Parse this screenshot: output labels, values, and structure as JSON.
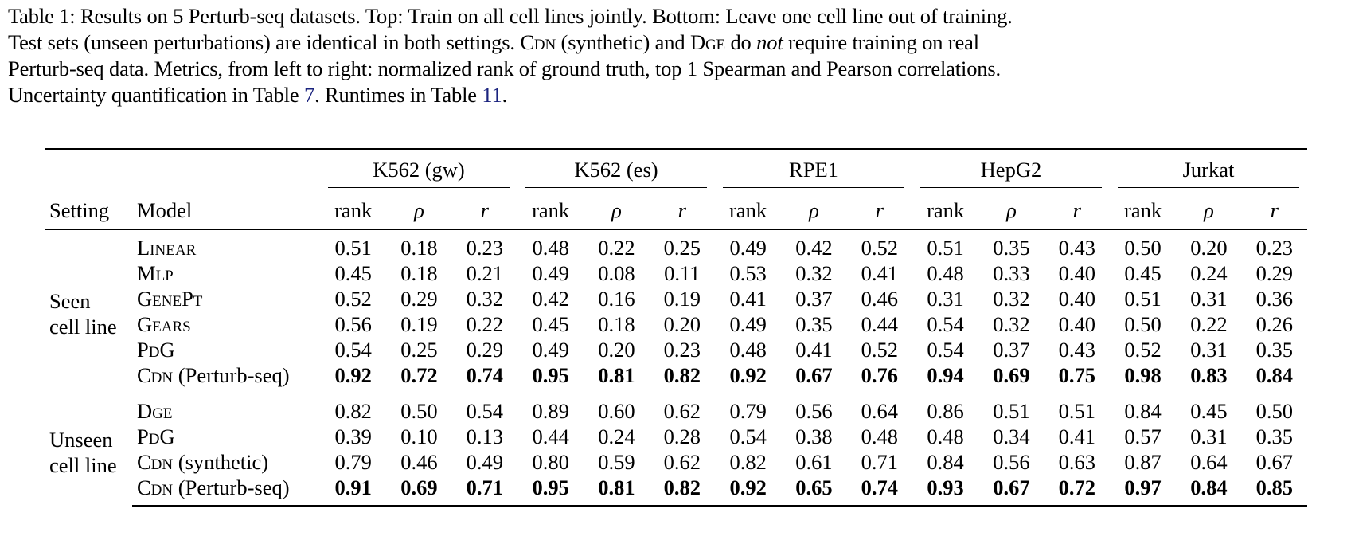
{
  "caption": {
    "line1": "Table 1: Results on 5 Perturb-seq datasets. Top: Train on all cell lines jointly. Bottom: Leave one cell line out of training.",
    "line2_a": "Test sets (unseen perturbations) are identical in both settings. ",
    "line2_cdn": "Cdn",
    "line2_b": " (synthetic) and ",
    "line2_dge": "Dge",
    "line2_c": " do ",
    "line2_not": "not",
    "line2_d": " require training on real",
    "line3": "Perturb-seq data. Metrics, from left to right: normalized rank of ground truth, top 1 Spearman and Pearson correlations.",
    "line4_a": "Uncertainty quantification in Table ",
    "line4_ref1": "7",
    "line4_b": ". Runtimes in Table ",
    "line4_ref2": "11",
    "line4_c": "."
  },
  "table": {
    "header": {
      "setting": "Setting",
      "model": "Model",
      "datasets": [
        "K562 (gw)",
        "K562 (es)",
        "RPE1",
        "HepG2",
        "Jurkat"
      ],
      "metrics": [
        "rank",
        "ρ",
        "r"
      ]
    },
    "blocks": [
      {
        "setting_line1": "Seen",
        "setting_line2": "cell line",
        "rows": [
          {
            "model_sc": "Linear",
            "model_suffix": "",
            "bold": false,
            "values": [
              "0.51",
              "0.18",
              "0.23",
              "0.48",
              "0.22",
              "0.25",
              "0.49",
              "0.42",
              "0.52",
              "0.51",
              "0.35",
              "0.43",
              "0.50",
              "0.20",
              "0.23"
            ]
          },
          {
            "model_sc": "Mlp",
            "model_suffix": "",
            "bold": false,
            "values": [
              "0.45",
              "0.18",
              "0.21",
              "0.49",
              "0.08",
              "0.11",
              "0.53",
              "0.32",
              "0.41",
              "0.48",
              "0.33",
              "0.40",
              "0.45",
              "0.24",
              "0.29"
            ]
          },
          {
            "model_sc": "GenePt",
            "model_suffix": "",
            "bold": false,
            "values": [
              "0.52",
              "0.29",
              "0.32",
              "0.42",
              "0.16",
              "0.19",
              "0.41",
              "0.37",
              "0.46",
              "0.31",
              "0.32",
              "0.40",
              "0.51",
              "0.31",
              "0.36"
            ]
          },
          {
            "model_sc": "Gears",
            "model_suffix": "",
            "bold": false,
            "values": [
              "0.56",
              "0.19",
              "0.22",
              "0.45",
              "0.18",
              "0.20",
              "0.49",
              "0.35",
              "0.44",
              "0.54",
              "0.32",
              "0.40",
              "0.50",
              "0.22",
              "0.26"
            ]
          },
          {
            "model_sc": "PdG",
            "model_suffix": "",
            "bold": false,
            "values": [
              "0.54",
              "0.25",
              "0.29",
              "0.49",
              "0.20",
              "0.23",
              "0.48",
              "0.41",
              "0.52",
              "0.54",
              "0.37",
              "0.43",
              "0.52",
              "0.31",
              "0.35"
            ]
          },
          {
            "model_sc": "Cdn",
            "model_suffix": " (Perturb-seq)",
            "bold": true,
            "values": [
              "0.92",
              "0.72",
              "0.74",
              "0.95",
              "0.81",
              "0.82",
              "0.92",
              "0.67",
              "0.76",
              "0.94",
              "0.69",
              "0.75",
              "0.98",
              "0.83",
              "0.84"
            ]
          }
        ]
      },
      {
        "setting_line1": "Unseen",
        "setting_line2": "cell line",
        "rows": [
          {
            "model_sc": "Dge",
            "model_suffix": "",
            "bold": false,
            "values": [
              "0.82",
              "0.50",
              "0.54",
              "0.89",
              "0.60",
              "0.62",
              "0.79",
              "0.56",
              "0.64",
              "0.86",
              "0.51",
              "0.51",
              "0.84",
              "0.45",
              "0.50"
            ]
          },
          {
            "model_sc": "PdG",
            "model_suffix": "",
            "bold": false,
            "values": [
              "0.39",
              "0.10",
              "0.13",
              "0.44",
              "0.24",
              "0.28",
              "0.54",
              "0.38",
              "0.48",
              "0.48",
              "0.34",
              "0.41",
              "0.57",
              "0.31",
              "0.35"
            ]
          },
          {
            "model_sc": "Cdn",
            "model_suffix": " (synthetic)",
            "bold": false,
            "values": [
              "0.79",
              "0.46",
              "0.49",
              "0.80",
              "0.59",
              "0.62",
              "0.82",
              "0.61",
              "0.71",
              "0.84",
              "0.56",
              "0.63",
              "0.87",
              "0.64",
              "0.67"
            ]
          },
          {
            "model_sc": "Cdn",
            "model_suffix": " (Perturb-seq)",
            "bold": true,
            "values": [
              "0.91",
              "0.69",
              "0.71",
              "0.95",
              "0.81",
              "0.82",
              "0.92",
              "0.65",
              "0.74",
              "0.93",
              "0.67",
              "0.72",
              "0.97",
              "0.84",
              "0.85"
            ]
          }
        ]
      }
    ]
  }
}
